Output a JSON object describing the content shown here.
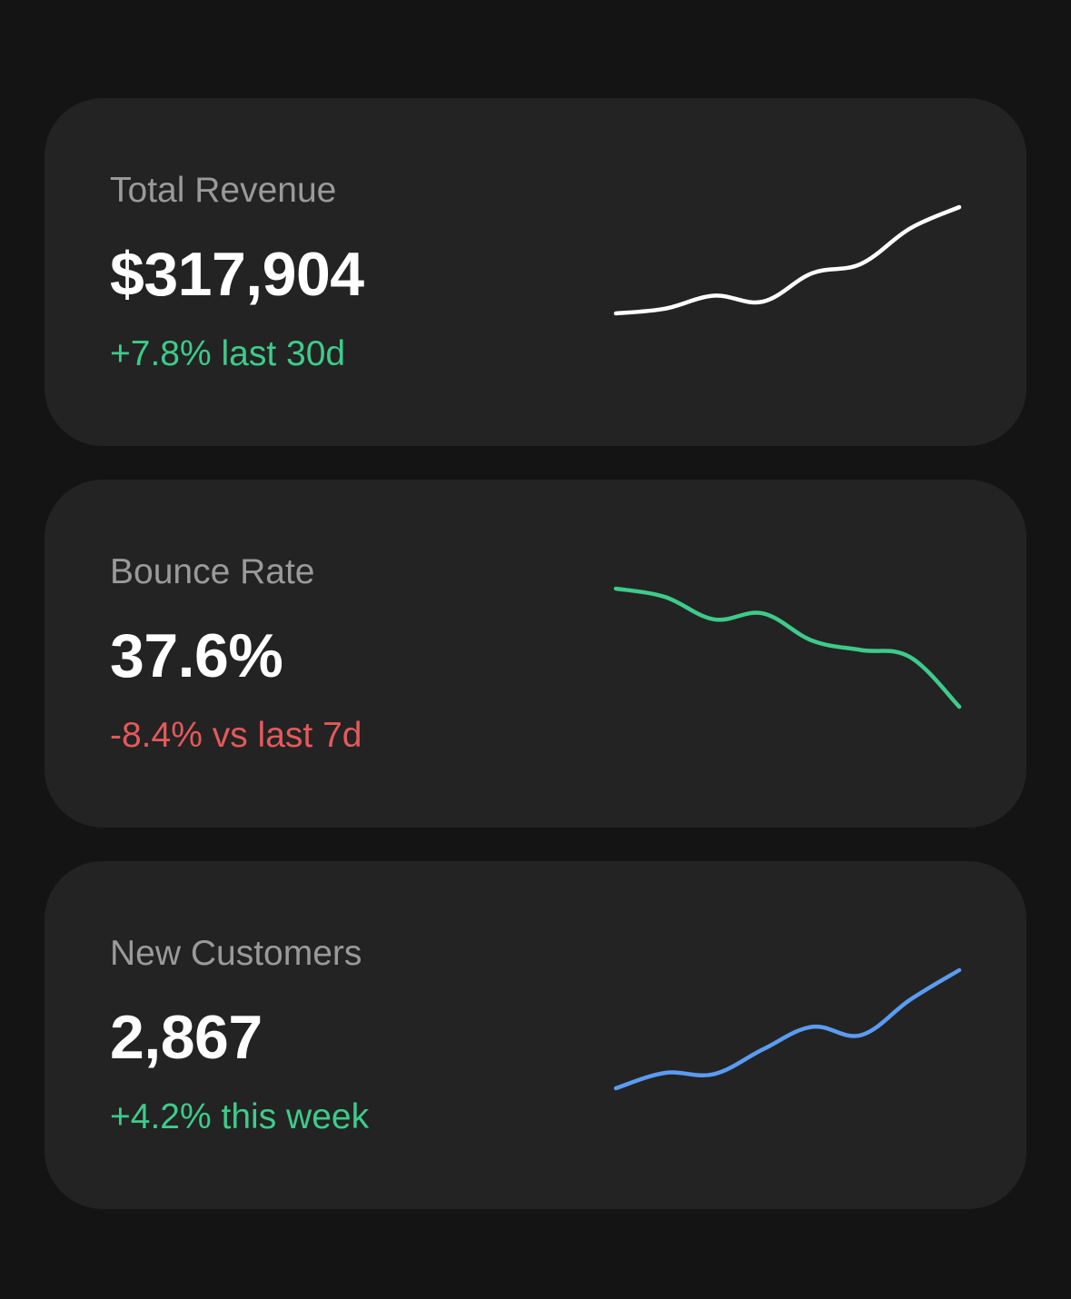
{
  "metrics": [
    {
      "label": "Total Revenue",
      "value": "$317,904",
      "change": "+7.8% last 30d",
      "change_color": "#3ecb8a",
      "line_color": "#ffffff",
      "trend": [
        10,
        14,
        25,
        20,
        44,
        52,
        82,
        100
      ]
    },
    {
      "label": "Bounce Rate",
      "value": "37.6%",
      "change": "-8.4% vs last 7d",
      "change_color": "#e5595b",
      "line_color": "#3ecb8a",
      "trend": [
        100,
        93,
        74,
        79,
        56,
        48,
        42,
        0
      ]
    },
    {
      "label": "New Customers",
      "value": "2,867",
      "change": "+4.2% this week",
      "change_color": "#3ecb8a",
      "line_color": "#5b9cf2",
      "trend": [
        0,
        13,
        12,
        33,
        52,
        45,
        75,
        100
      ]
    }
  ]
}
